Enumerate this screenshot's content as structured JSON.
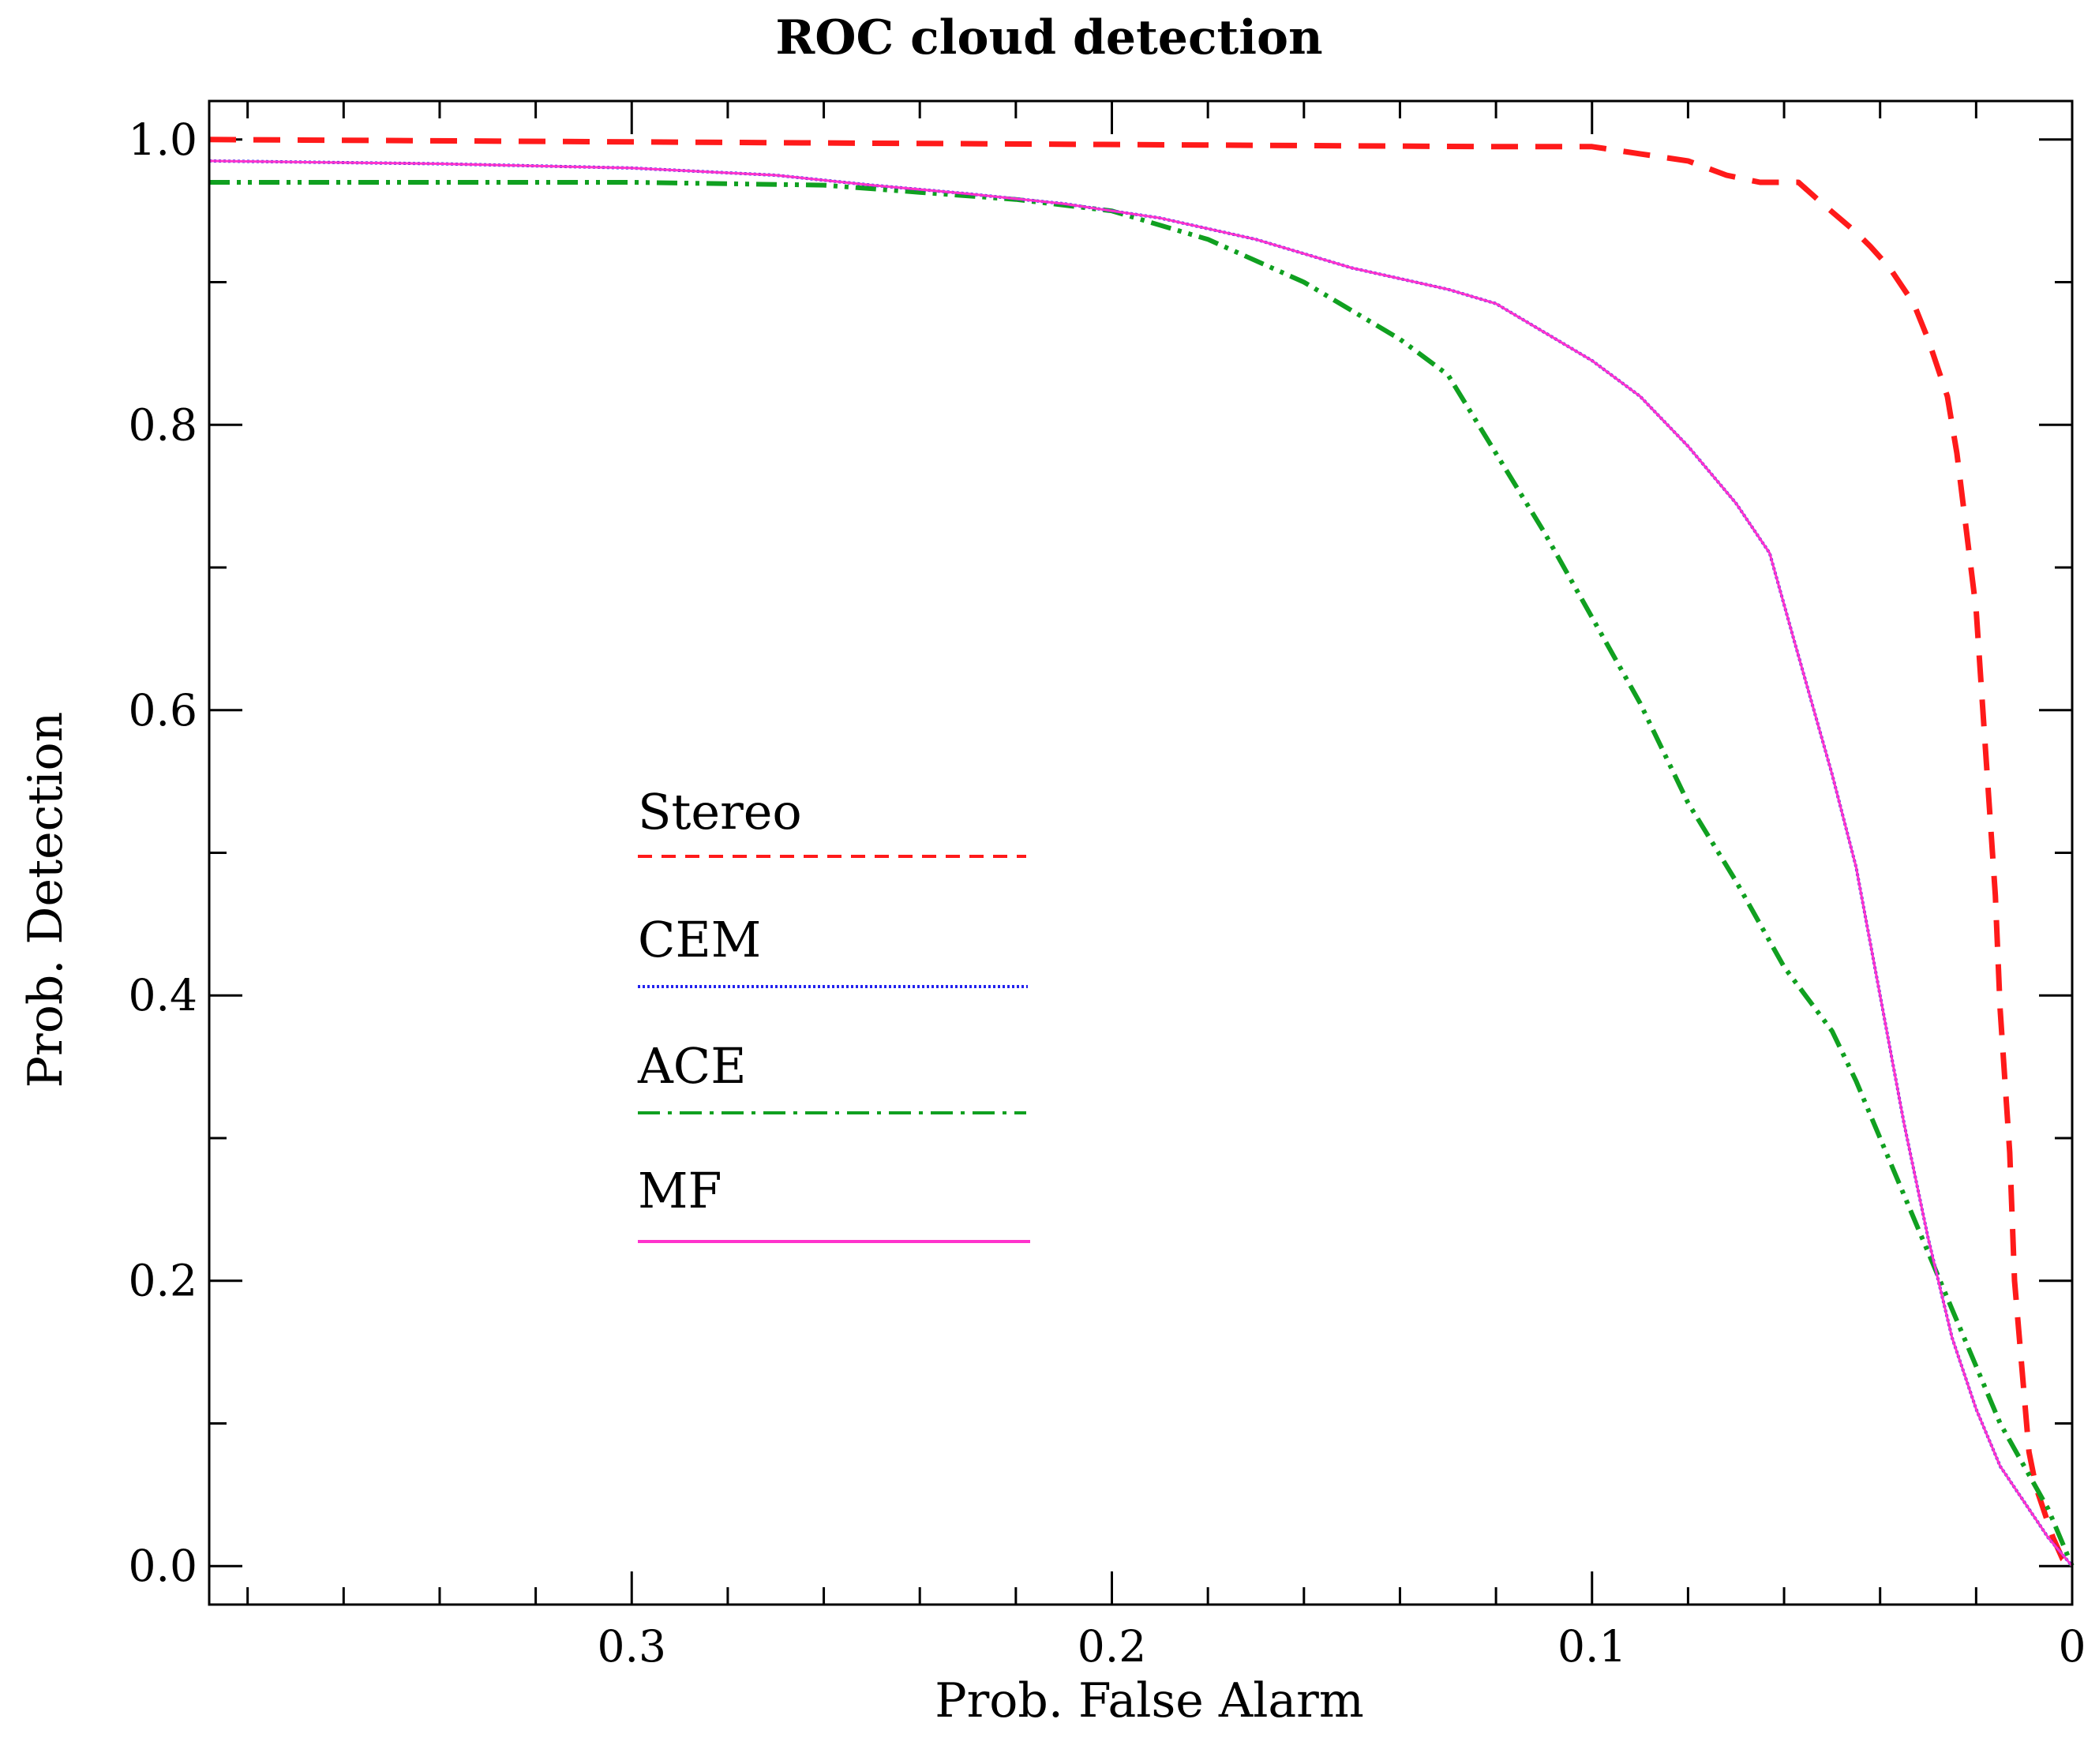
{
  "chart_data": {
    "type": "line",
    "title": "ROC cloud detection",
    "xlabel": "Prob. False Alarm",
    "ylabel": "Prob. Detection",
    "xlim": [
      0.388,
      0.0
    ],
    "ylim": [
      -0.027,
      1.027
    ],
    "x_ticks": [
      0.3,
      0.2,
      0.1,
      0
    ],
    "x_tick_labels": [
      "0.3",
      "0.2",
      "0.1",
      "0"
    ],
    "y_ticks": [
      0.0,
      0.2,
      0.4,
      0.6,
      0.8,
      1.0
    ],
    "y_tick_labels": [
      "0.0",
      "0.2",
      "0.4",
      "0.6",
      "0.8",
      "1.0"
    ],
    "legend_position": "center-left",
    "series": [
      {
        "name": "Stereo",
        "color": "#ff1a1a",
        "style": "dashed",
        "x": [
          0.388,
          0.12,
          0.1,
          0.09,
          0.08,
          0.072,
          0.065,
          0.057,
          0.052,
          0.045,
          0.042,
          0.038,
          0.033,
          0.03,
          0.026,
          0.024,
          0.02,
          0.018,
          0.016,
          0.015,
          0.013,
          0.012,
          0.01,
          0.009,
          0.0075,
          0.006,
          0.004,
          0.002,
          0.0
        ],
        "y": [
          1.0,
          0.995,
          0.995,
          0.99,
          0.985,
          0.975,
          0.97,
          0.97,
          0.955,
          0.935,
          0.925,
          0.91,
          0.885,
          0.86,
          0.82,
          0.78,
          0.67,
          0.57,
          0.47,
          0.39,
          0.29,
          0.2,
          0.12,
          0.08,
          0.055,
          0.04,
          0.02,
          0.005,
          0.0
        ]
      },
      {
        "name": "CEM",
        "color": "#2222ee",
        "style": "dotted",
        "x": [
          0.388,
          0.34,
          0.3,
          0.27,
          0.25,
          0.23,
          0.21,
          0.19,
          0.17,
          0.15,
          0.13,
          0.12,
          0.11,
          0.1,
          0.09,
          0.08,
          0.07,
          0.063,
          0.058,
          0.05,
          0.045,
          0.04,
          0.035,
          0.03,
          0.025,
          0.02,
          0.015,
          0.01,
          0.005,
          0.0
        ],
        "y": [
          0.985,
          0.983,
          0.98,
          0.975,
          0.968,
          0.962,
          0.955,
          0.945,
          0.93,
          0.91,
          0.895,
          0.885,
          0.865,
          0.845,
          0.82,
          0.785,
          0.745,
          0.71,
          0.65,
          0.555,
          0.49,
          0.4,
          0.31,
          0.23,
          0.16,
          0.11,
          0.07,
          0.045,
          0.02,
          0.0
        ]
      },
      {
        "name": "ACE",
        "color": "#10a020",
        "style": "dashdotdot",
        "x": [
          0.388,
          0.3,
          0.26,
          0.24,
          0.22,
          0.2,
          0.18,
          0.16,
          0.14,
          0.13,
          0.12,
          0.11,
          0.1,
          0.09,
          0.08,
          0.07,
          0.06,
          0.05,
          0.045,
          0.04,
          0.035,
          0.03,
          0.025,
          0.02,
          0.015,
          0.01,
          0.005,
          0.0
        ],
        "y": [
          0.97,
          0.97,
          0.968,
          0.963,
          0.958,
          0.95,
          0.93,
          0.9,
          0.86,
          0.835,
          0.78,
          0.725,
          0.665,
          0.605,
          0.535,
          0.48,
          0.42,
          0.375,
          0.34,
          0.3,
          0.26,
          0.22,
          0.18,
          0.14,
          0.1,
          0.07,
          0.04,
          0.0
        ]
      },
      {
        "name": "MF",
        "color": "#ff33cc",
        "style": "solid",
        "x": [
          0.388,
          0.34,
          0.3,
          0.27,
          0.25,
          0.23,
          0.21,
          0.19,
          0.17,
          0.15,
          0.13,
          0.12,
          0.11,
          0.1,
          0.09,
          0.08,
          0.07,
          0.063,
          0.058,
          0.05,
          0.045,
          0.04,
          0.035,
          0.03,
          0.025,
          0.02,
          0.015,
          0.01,
          0.005,
          0.0
        ],
        "y": [
          0.985,
          0.983,
          0.98,
          0.975,
          0.968,
          0.962,
          0.955,
          0.945,
          0.93,
          0.91,
          0.895,
          0.885,
          0.865,
          0.845,
          0.82,
          0.785,
          0.745,
          0.71,
          0.65,
          0.555,
          0.49,
          0.4,
          0.31,
          0.23,
          0.16,
          0.11,
          0.07,
          0.045,
          0.02,
          0.0
        ]
      }
    ]
  }
}
